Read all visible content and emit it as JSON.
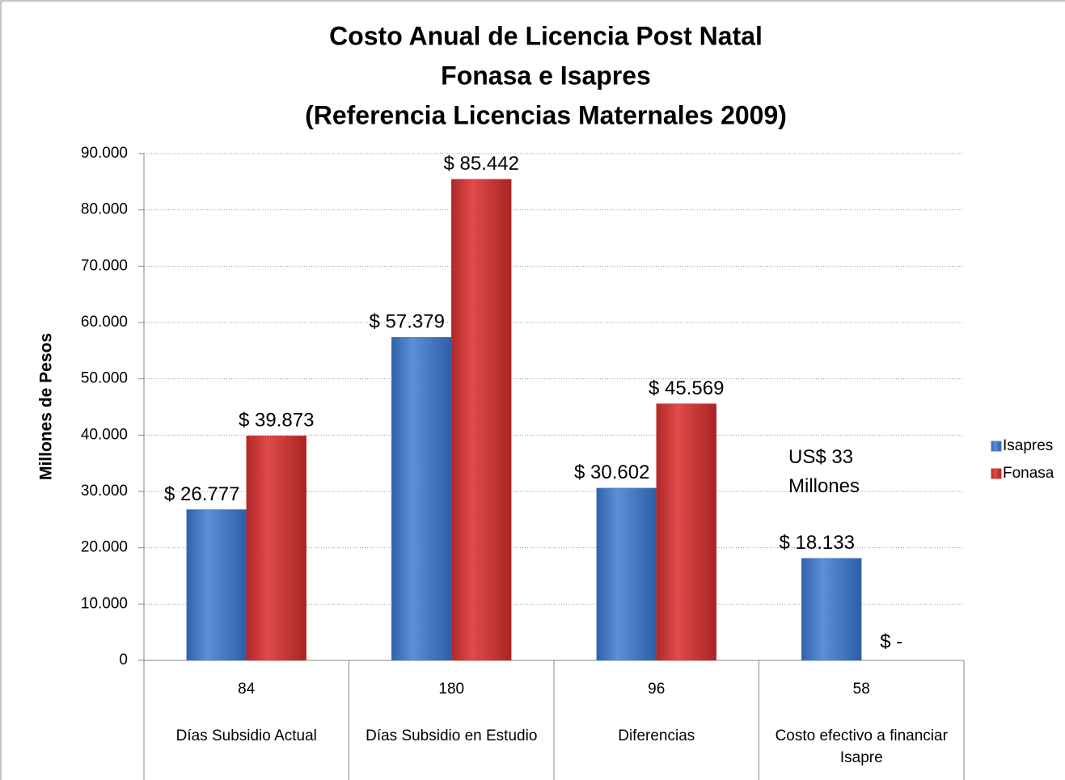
{
  "chart_data": {
    "type": "bar",
    "title": [
      "Costo Anual de Licencia Post Natal",
      "Fonasa e Isapres",
      "(Referencia Licencias Maternales 2009)"
    ],
    "y_label": "Millones de Pesos",
    "categories": [
      "84",
      "180",
      "96",
      "58"
    ],
    "category_groups": [
      "Días Subsidio Actual",
      "Días Subsidio en Estudio",
      "Diferencias",
      "Costo efectivo a financiar Isapre"
    ],
    "series": [
      {
        "name": "Isapres",
        "color": "#4a7fcb",
        "values": [
          26777,
          57379,
          30602,
          18133
        ],
        "value_labels": [
          "$ 26.777",
          "$ 57.379",
          "$ 30.602",
          "$ 18.133"
        ]
      },
      {
        "name": "Fonasa",
        "color": "#d23c3c",
        "values": [
          39873,
          85442,
          45569,
          0
        ],
        "value_labels": [
          "$ 39.873",
          "$ 85.442",
          "$ 45.569",
          "$ -"
        ]
      }
    ],
    "annotation": "US$ 33 Millones",
    "ylim": [
      0,
      90000
    ],
    "yticks": [
      0,
      {
        "value": 10000,
        "label": "10.000"
      },
      {
        "value": 20000,
        "label": "20.000"
      },
      {
        "value": 30000,
        "label": "30.000"
      },
      {
        "value": 40000,
        "label": "40.000"
      },
      {
        "value": 50000,
        "label": "50.000"
      },
      {
        "value": 60000,
        "label": "60.000"
      },
      {
        "value": 70000,
        "label": "70.000"
      },
      {
        "value": 80000,
        "label": "80.000"
      },
      {
        "value": 90000,
        "label": "90.000"
      }
    ],
    "grid": true,
    "legend": "right"
  }
}
